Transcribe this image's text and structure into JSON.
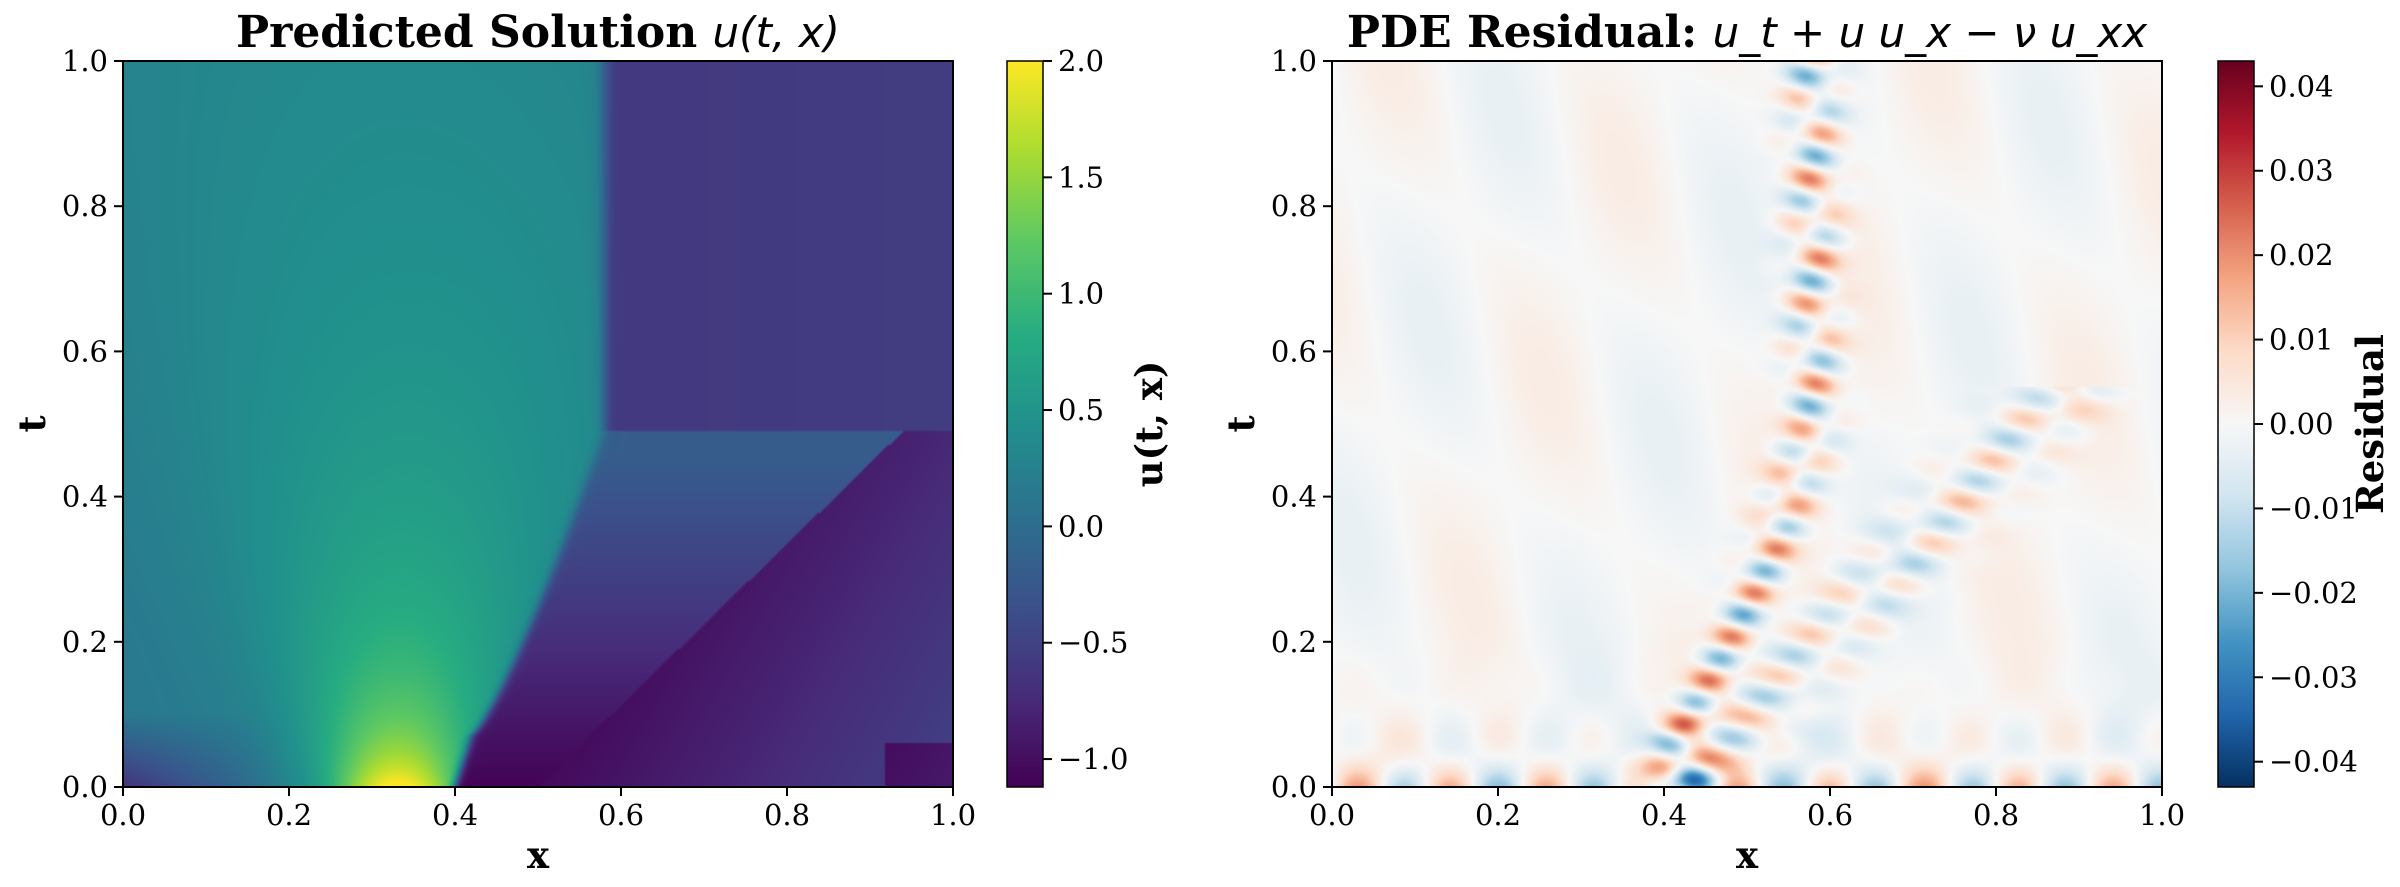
{
  "chart_data": [
    {
      "type": "heatmap",
      "title": "Predicted Solution ",
      "title_math": "u(t, x)",
      "xlabel": "x",
      "ylabel": "t",
      "xlim": [
        0.0,
        1.0
      ],
      "ylim": [
        0.0,
        1.0
      ],
      "xticks": [
        "0.0",
        "0.2",
        "0.4",
        "0.6",
        "0.8",
        "1.0"
      ],
      "yticks": [
        "0.0",
        "0.2",
        "0.4",
        "0.6",
        "0.8",
        "1.0"
      ],
      "colormap": "viridis",
      "colorbar": {
        "label": "u(t, x)",
        "range": [
          -1.12,
          2.0
        ],
        "ticks": [
          "−1.0",
          "−0.5",
          "0.0",
          "0.5",
          "1.0",
          "1.5",
          "2.0"
        ],
        "tick_values": [
          -1.0,
          -0.5,
          0.0,
          0.5,
          1.0,
          1.5,
          2.0
        ]
      },
      "features": {
        "initial_peak": {
          "x": 0.33,
          "t": 0.0,
          "u": 2.0
        },
        "initial_trough": {
          "x": 0.5,
          "t": 0.0,
          "u": -1.1
        },
        "shock_start": {
          "x": 0.42,
          "t": 0.07
        },
        "shock_merge": {
          "x": 0.58,
          "t": 0.49
        },
        "upper_left_value": 0.2,
        "upper_right_value": -0.5
      }
    },
    {
      "type": "heatmap",
      "title": "PDE Residual: ",
      "title_math": "u_t + u u_x − ν u_xx",
      "xlabel": "x",
      "ylabel": "t",
      "xlim": [
        0.0,
        1.0
      ],
      "ylim": [
        0.0,
        1.0
      ],
      "xticks": [
        "0.0",
        "0.2",
        "0.4",
        "0.6",
        "0.8",
        "1.0"
      ],
      "yticks": [
        "0.0",
        "0.2",
        "0.4",
        "0.6",
        "0.8",
        "1.0"
      ],
      "colormap": "RdBu_r",
      "colorbar": {
        "label": "Residual",
        "range": [
          -0.043,
          0.043
        ],
        "ticks": [
          "−0.04",
          "−0.03",
          "−0.02",
          "−0.01",
          "0.00",
          "0.01",
          "0.02",
          "0.03",
          "0.04"
        ],
        "tick_values": [
          -0.04,
          -0.03,
          -0.02,
          -0.01,
          0.0,
          0.01,
          0.02,
          0.03,
          0.04
        ]
      },
      "features": {
        "max_abs_residual": 0.043,
        "active_band": "along shock lines near x=0.4–0.6, strongest near t<0.1"
      }
    }
  ]
}
